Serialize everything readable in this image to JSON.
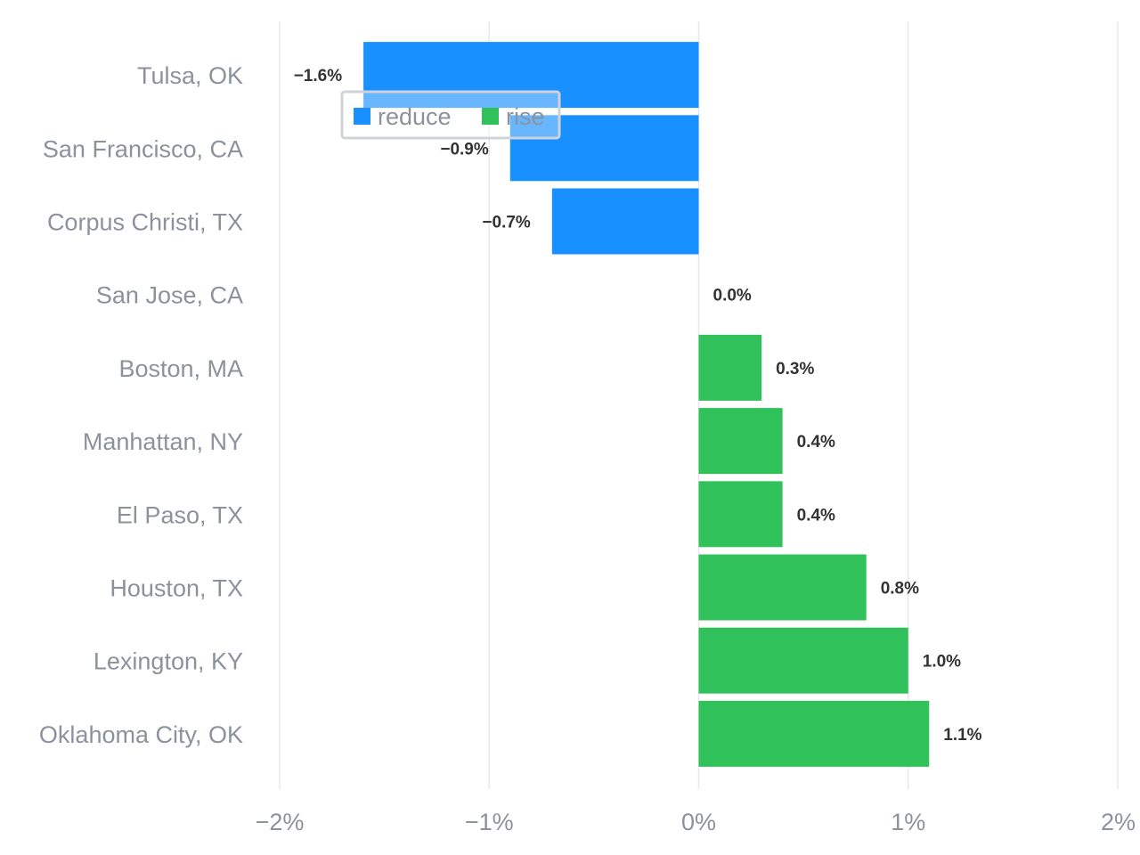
{
  "chart_data": {
    "type": "bar",
    "orientation": "horizontal",
    "categories": [
      "Tulsa, OK",
      "San Francisco, CA",
      "Corpus Christi, TX",
      "San Jose, CA",
      "Boston, MA",
      "Manhattan, NY",
      "El Paso, TX",
      "Houston, TX",
      "Lexington, KY",
      "Oklahoma City, OK"
    ],
    "values": [
      -1.6,
      -0.9,
      -0.7,
      0.0,
      0.3,
      0.4,
      0.4,
      0.8,
      1.0,
      1.1
    ],
    "value_labels": [
      "−1.6%",
      "−0.9%",
      "−0.7%",
      "0.0%",
      "0.3%",
      "0.4%",
      "0.4%",
      "0.8%",
      "1.0%",
      "1.1%"
    ],
    "xlim": [
      -2,
      2
    ],
    "x_ticks": [
      -2,
      -1,
      0,
      1,
      2
    ],
    "x_tick_labels": [
      "−2%",
      "−1%",
      "0%",
      "1%",
      "2%"
    ],
    "grid": true,
    "legend": {
      "placement": "top-left",
      "items": [
        {
          "label": "reduce",
          "color": "#1890ff"
        },
        {
          "label": "rise",
          "color": "#30c15a"
        }
      ]
    },
    "colors": {
      "negative": "#1890ff",
      "positive": "#30c15a",
      "grid": "#e8e8e8"
    }
  }
}
